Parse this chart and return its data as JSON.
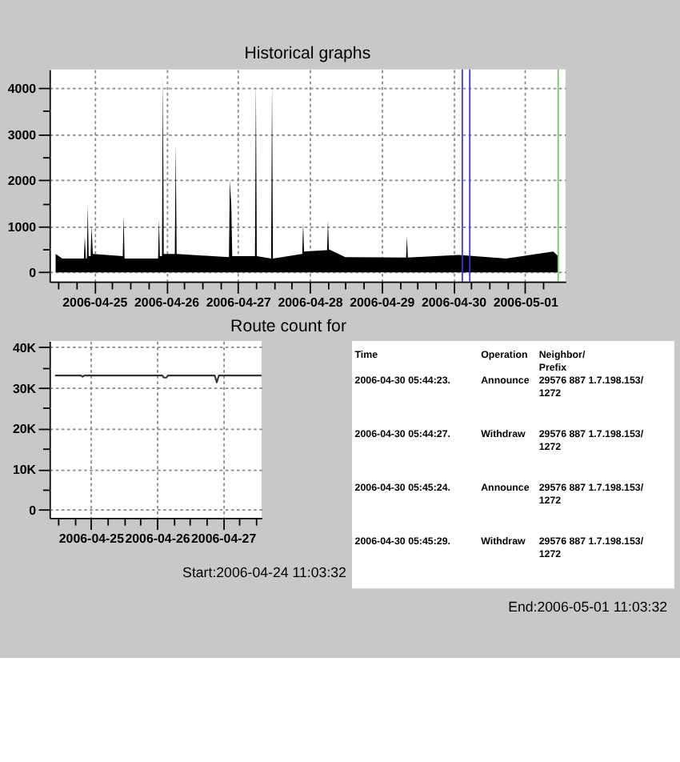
{
  "chart_data": [
    {
      "type": "area",
      "title": "Historical graphs",
      "color": "#000000",
      "grid": true,
      "x": [
        "2006-04-24T11:03",
        "2006-04-24T13:18",
        "2006-04-24T20:30",
        "2006-04-24T20:48",
        "2006-04-24T21:10",
        "2006-04-24T21:30",
        "2006-04-24T21:48",
        "2006-04-24T22:06",
        "2006-04-24T22:45",
        "2006-04-24T23:03",
        "2006-04-24T23:30",
        "2006-04-25T09:30",
        "2006-04-25T09:48",
        "2006-04-25T10:06",
        "2006-04-25T21:18",
        "2006-04-25T21:36",
        "2006-04-25T21:54",
        "2006-04-25T22:36",
        "2006-04-25T22:54",
        "2006-04-25T23:12",
        "2006-04-26T02:54",
        "2006-04-26T03:12",
        "2006-04-26T03:30",
        "2006-04-26T21:00",
        "2006-04-26T21:18",
        "2006-04-26T21:48",
        "2006-04-26T22:06",
        "2006-04-27T05:42",
        "2006-04-27T06:00",
        "2006-04-27T06:18",
        "2006-04-27T11:06",
        "2006-04-27T11:24",
        "2006-04-27T11:42",
        "2006-04-27T21:30",
        "2006-04-27T21:48",
        "2006-04-27T22:06",
        "2006-04-28T05:48",
        "2006-04-28T06:06",
        "2006-04-28T06:24",
        "2006-04-28T11:54",
        "2006-04-29T08:12",
        "2006-04-29T08:30",
        "2006-04-29T08:48",
        "2006-04-30T01:54",
        "2006-04-30T17:36",
        "2006-05-01T09:24",
        "2006-05-01T11:03"
      ],
      "values": [
        400,
        300,
        300,
        780,
        300,
        300,
        1450,
        350,
        350,
        1000,
        400,
        350,
        1230,
        300,
        300,
        1150,
        350,
        350,
        4250,
        400,
        400,
        2780,
        400,
        330,
        2000,
        1400,
        350,
        350,
        4150,
        350,
        300,
        4100,
        300,
        400,
        1080,
        450,
        480,
        1130,
        500,
        330,
        320,
        780,
        320,
        380,
        300,
        450,
        350
      ],
      "xlim": [
        "2006-04-24T09:00",
        "2006-05-01T13:30"
      ],
      "xticks": [
        {
          "value": "2006-04-24T12:00",
          "label": null
        },
        {
          "value": "2006-04-24T18:00",
          "label": null
        },
        "2006-04-25",
        {
          "value": "2006-04-25T06:00",
          "label": null
        },
        {
          "value": "2006-04-25T12:00",
          "label": null
        },
        {
          "value": "2006-04-25T18:00",
          "label": null
        },
        "2006-04-26",
        {
          "value": "2006-04-26T06:00",
          "label": null
        },
        {
          "value": "2006-04-26T12:00",
          "label": null
        },
        {
          "value": "2006-04-26T18:00",
          "label": null
        },
        "2006-04-27",
        {
          "value": "2006-04-27T06:00",
          "label": null
        },
        {
          "value": "2006-04-27T12:00",
          "label": null
        },
        {
          "value": "2006-04-27T18:00",
          "label": null
        },
        "2006-04-28",
        {
          "value": "2006-04-28T06:00",
          "label": null
        },
        {
          "value": "2006-04-28T12:00",
          "label": null
        },
        {
          "value": "2006-04-28T18:00",
          "label": null
        },
        "2006-04-29",
        {
          "value": "2006-04-29T06:00",
          "label": null
        },
        {
          "value": "2006-04-29T12:00",
          "label": null
        },
        {
          "value": "2006-04-29T18:00",
          "label": null
        },
        "2006-04-30",
        {
          "value": "2006-04-30T06:00",
          "label": null
        },
        {
          "value": "2006-04-30T12:00",
          "label": null
        },
        {
          "value": "2006-04-30T18:00",
          "label": null
        },
        "2006-05-01",
        {
          "value": "2006-05-01T06:00",
          "label": null
        }
      ],
      "ylim": [
        -200,
        4400
      ],
      "yticks": [
        0,
        {
          "value": 500,
          "label": null
        },
        1000,
        {
          "value": 1500,
          "label": null
        },
        2000,
        {
          "value": 2500,
          "label": null
        },
        3000,
        {
          "value": 3500,
          "label": null
        },
        4000
      ],
      "ref_lines": [
        {
          "axis": "x",
          "value": "2006-04-30T03:00",
          "color": "#3333ff"
        },
        {
          "axis": "x",
          "value": "2006-04-30T05:30",
          "color": "#3333ff"
        },
        {
          "axis": "x",
          "value": "2006-05-01T11:03",
          "color": "#66cc66"
        }
      ]
    },
    {
      "type": "line",
      "title": "Route count for",
      "color": "#333333",
      "grid": true,
      "x": [
        "2006-04-24T11:03",
        "2006-04-24T20:30",
        "2006-04-24T21:03",
        "2006-04-24T21:40",
        "2006-04-26T02:00",
        "2006-04-26T02:30",
        "2006-04-26T03:30",
        "2006-04-26T04:00",
        "2006-04-26T21:00",
        "2006-04-26T21:45",
        "2006-04-26T22:30",
        "2006-04-27T14:00"
      ],
      "values": [
        33000,
        33000,
        32700,
        33000,
        33000,
        32500,
        32500,
        33000,
        33000,
        31300,
        33000,
        33000
      ],
      "xlim": [
        "2006-04-24T09:00",
        "2006-04-27T14:00"
      ],
      "xticks": [
        {
          "value": "2006-04-24T12:00",
          "label": null
        },
        {
          "value": "2006-04-24T18:00",
          "label": null
        },
        "2006-04-25",
        {
          "value": "2006-04-25T06:00",
          "label": null
        },
        {
          "value": "2006-04-25T12:00",
          "label": null
        },
        {
          "value": "2006-04-25T18:00",
          "label": null
        },
        "2006-04-26",
        {
          "value": "2006-04-26T06:00",
          "label": null
        },
        {
          "value": "2006-04-26T12:00",
          "label": null
        },
        {
          "value": "2006-04-26T18:00",
          "label": null
        },
        "2006-04-27",
        {
          "value": "2006-04-27T06:00",
          "label": null
        },
        {
          "value": "2006-04-27T12:00",
          "label": null
        }
      ],
      "ylim": [
        -2000,
        41500
      ],
      "yticks": [
        0,
        {
          "value": 5000,
          "label": null
        },
        {
          "value": 10000,
          "label": "10K"
        },
        {
          "value": 15000,
          "label": null
        },
        {
          "value": 20000,
          "label": "20K"
        },
        {
          "value": 25000,
          "label": null
        },
        {
          "value": 30000,
          "label": "30K"
        },
        {
          "value": 35000,
          "label": null
        },
        {
          "value": 40000,
          "label": "40K"
        }
      ],
      "annotations": [
        "Start:2006-04-24 11:03:32"
      ]
    },
    {
      "type": "other",
      "categories": [
        "Time",
        "Operation",
        "Neighbor/\nPrefix"
      ],
      "annotations": [
        "2006-04-30 05:44:23.",
        "Announce",
        "29576 887 1.7.198.153/\n1272",
        "2006-04-30 05:44:27.",
        "Withdraw",
        "29576 887 1.7.198.153/\n1272",
        "2006-04-30 05:45:24.",
        "Announce",
        "29576 887 1.7.198.153/\n1272",
        "2006-04-30 05:45:29.",
        "Withdraw",
        "29576 887 1.7.198.153/\n1272",
        "End:2006-05-01 11:03:32"
      ]
    }
  ]
}
